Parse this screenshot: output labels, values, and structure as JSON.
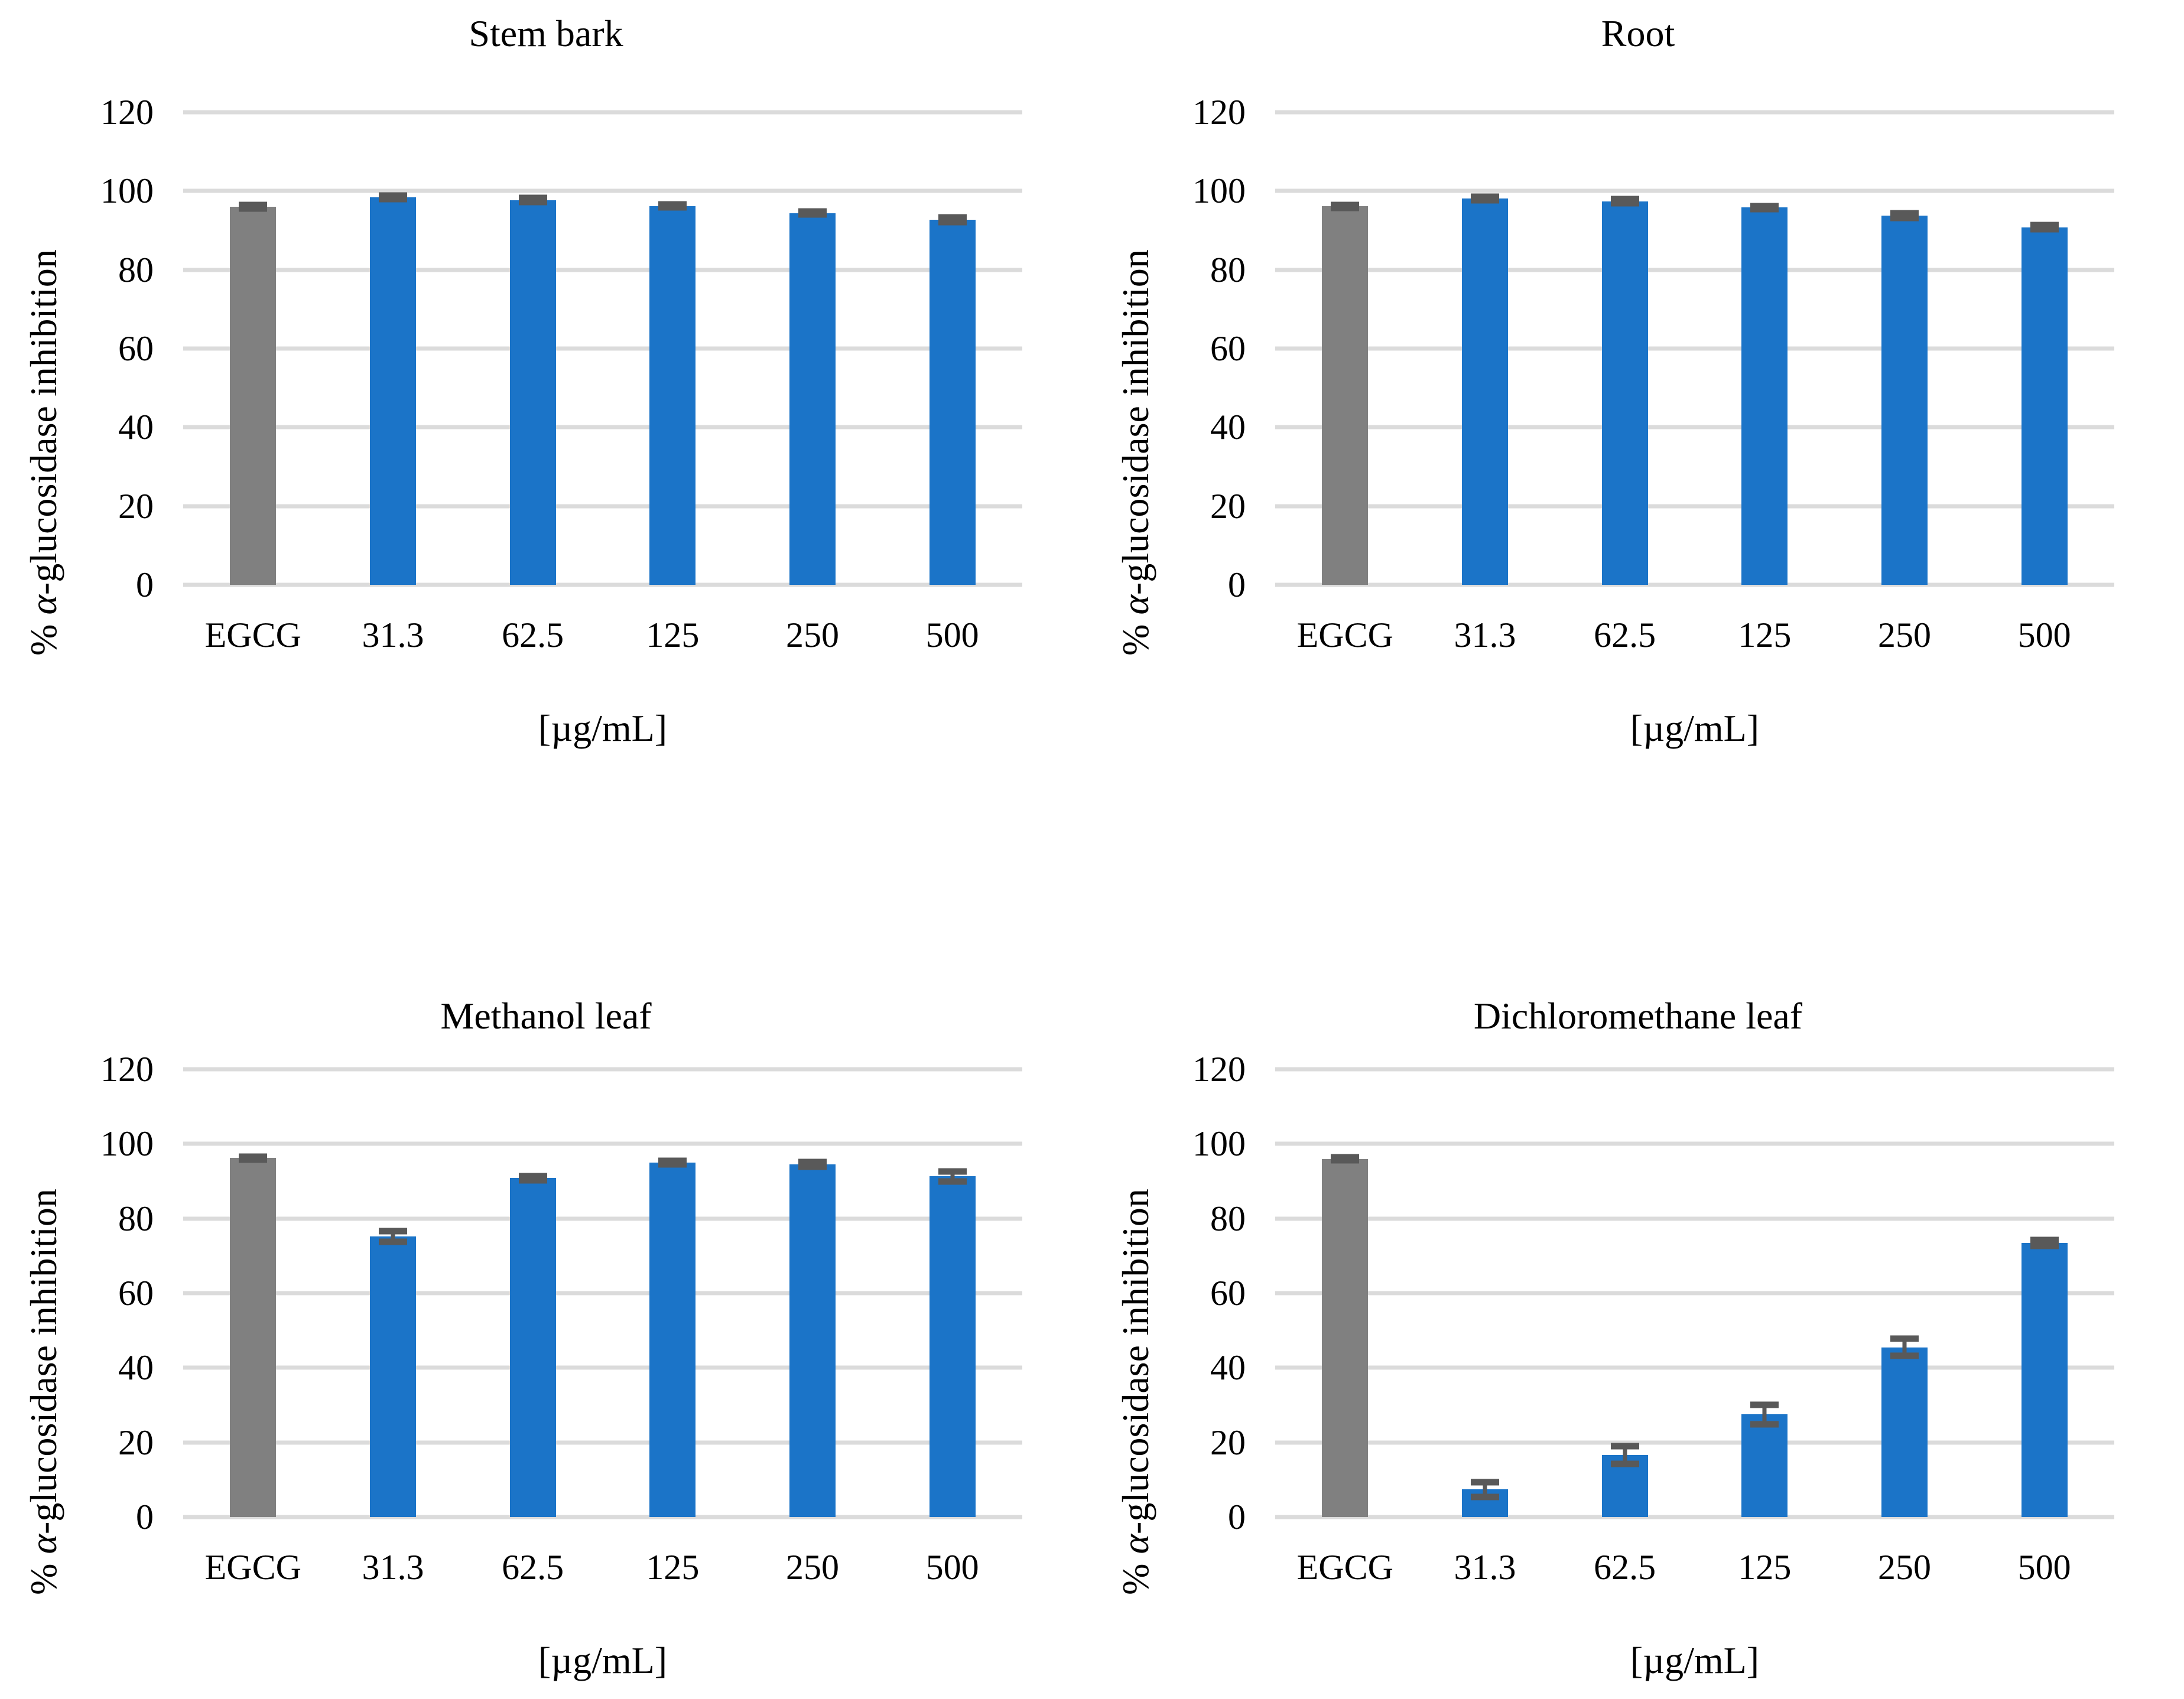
{
  "page": {
    "background": "#FFFFFF",
    "layout": "2x2-bar-charts"
  },
  "axis": {
    "y_label_prefix": "% ",
    "y_label_alpha": "α",
    "y_label_suffix": "-glucosidase inhibition",
    "x_label": "[µg/mL]"
  },
  "colors": {
    "control_bar": "#808080",
    "sample_bar": "#1B74C8",
    "error_bar": "#595959",
    "gridline": "#DBDBDB",
    "text": "#000000"
  },
  "chart_data": [
    {
      "type": "bar",
      "title": "Stem bark",
      "categories": [
        "EGCG",
        "31.3",
        "62.5",
        "125",
        "250",
        "500"
      ],
      "values": [
        96.0,
        98.4,
        97.7,
        96.2,
        94.4,
        92.7
      ],
      "errors": [
        0.5,
        0.5,
        0.5,
        0.4,
        0.4,
        0.6
      ],
      "control_index": 0,
      "xlabel": "[µg/mL]",
      "ylabel": "% α-glucosidase inhibition",
      "ylim": [
        0,
        120
      ],
      "yticks": [
        0,
        20,
        40,
        60,
        80,
        100,
        120
      ],
      "grid": true,
      "legend": "none"
    },
    {
      "type": "bar",
      "title": "Root",
      "categories": [
        "EGCG",
        "31.3",
        "62.5",
        "125",
        "250",
        "500"
      ],
      "values": [
        96.1,
        98.1,
        97.4,
        95.8,
        93.8,
        90.8
      ],
      "errors": [
        0.4,
        0.4,
        0.5,
        0.4,
        0.6,
        0.5
      ],
      "control_index": 0,
      "xlabel": "[µg/mL]",
      "ylabel": "% α-glucosidase inhibition",
      "ylim": [
        0,
        120
      ],
      "yticks": [
        0,
        20,
        40,
        60,
        80,
        100,
        120
      ],
      "grid": true,
      "legend": "none"
    },
    {
      "type": "bar",
      "title": "Methanol leaf",
      "categories": [
        "EGCG",
        "31.3",
        "62.5",
        "125",
        "250",
        "500"
      ],
      "values": [
        96.2,
        75.2,
        90.8,
        95.0,
        94.5,
        91.3
      ],
      "errors": [
        0.4,
        1.4,
        0.6,
        0.5,
        0.6,
        1.3
      ],
      "control_index": 0,
      "xlabel": "[µg/mL]",
      "ylabel": "% α-glucosidase inhibition",
      "ylim": [
        0,
        120
      ],
      "yticks": [
        0,
        20,
        40,
        60,
        80,
        100,
        120
      ],
      "grid": true,
      "legend": "none"
    },
    {
      "type": "bar",
      "title": "Dichloromethane leaf",
      "categories": [
        "EGCG",
        "31.3",
        "62.5",
        "125",
        "250",
        "500"
      ],
      "values": [
        96.0,
        7.4,
        16.6,
        27.5,
        45.5,
        73.4
      ],
      "errors": [
        0.4,
        2.0,
        2.4,
        2.6,
        2.3,
        0.8
      ],
      "control_index": 0,
      "xlabel": "[µg/mL]",
      "ylabel": "% α-glucosidase inhibition",
      "ylim": [
        0,
        120
      ],
      "yticks": [
        0,
        20,
        40,
        60,
        80,
        100,
        120
      ],
      "grid": true,
      "legend": "none"
    }
  ]
}
